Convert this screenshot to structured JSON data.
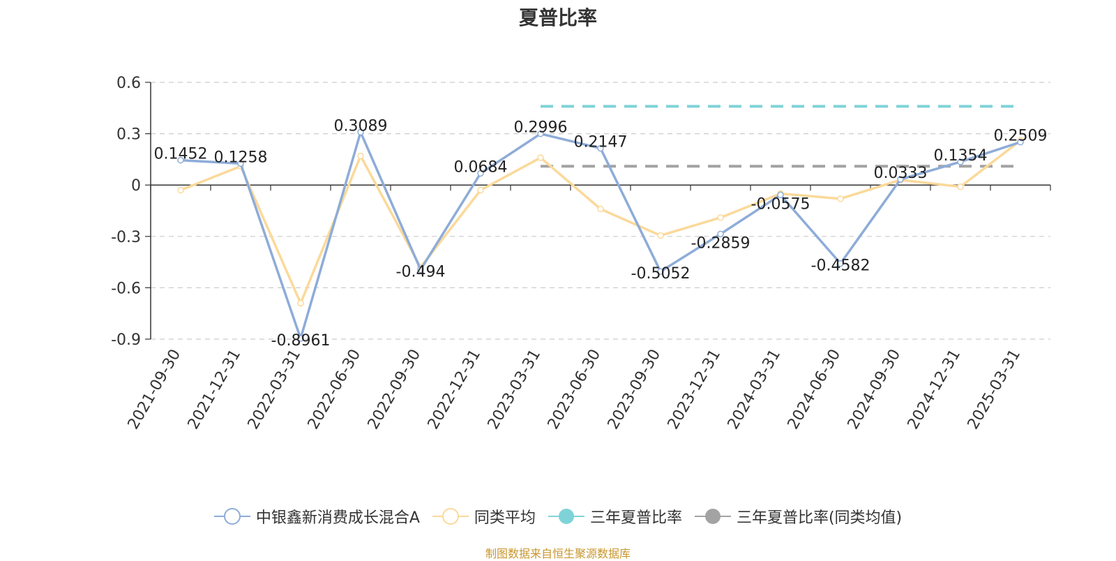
{
  "chart_data": {
    "type": "line",
    "title": "夏普比率",
    "categories": [
      "2021-09-30",
      "2021-12-31",
      "2022-03-31",
      "2022-06-30",
      "2022-09-30",
      "2022-12-31",
      "2023-03-31",
      "2023-06-30",
      "2023-09-30",
      "2023-12-31",
      "2024-03-31",
      "2024-06-30",
      "2024-09-30",
      "2024-12-31",
      "2025-03-31"
    ],
    "ylim": [
      -0.9,
      0.6
    ],
    "yticks": [
      0.6,
      0.3,
      0,
      -0.3,
      -0.6,
      -0.9
    ],
    "ytick_labels": [
      "0.6",
      "0.3",
      "0",
      "-0.3",
      "-0.6",
      "-0.9"
    ],
    "grid": true,
    "legend_position": "bottom",
    "series": [
      {
        "name": "中银鑫新消费成长混合A",
        "color": "#8eacd8",
        "values": [
          0.1452,
          0.1258,
          -0.8961,
          0.3089,
          -0.494,
          0.0684,
          0.2996,
          0.2147,
          -0.5052,
          -0.2859,
          -0.0575,
          -0.4582,
          0.0333,
          0.1354,
          0.2509
        ],
        "labels": [
          "0.1452",
          "0.1258",
          "-0.8961",
          "0.3089",
          "-0.494",
          "0.0684",
          "0.2996",
          "0.2147",
          "-0.5052",
          "-0.2859",
          "-0.0575",
          "-0.4582",
          "0.0333",
          "0.1354",
          "0.2509"
        ]
      },
      {
        "name": "同类平均",
        "color": "#fbd99a",
        "values": [
          -0.03,
          0.11,
          -0.69,
          0.17,
          -0.48,
          -0.03,
          0.16,
          -0.14,
          -0.295,
          -0.19,
          -0.05,
          -0.08,
          0.03,
          -0.01,
          0.26
        ]
      },
      {
        "name": "三年夏普比率",
        "color": "#7fd3d8",
        "style": "dashed",
        "value": 0.46,
        "x_range": [
          "2023-03-31",
          "2025-03-31"
        ]
      },
      {
        "name": "三年夏普比率(同类均值)",
        "color": "#a3a3a3",
        "style": "dashed",
        "value": 0.11,
        "x_range": [
          "2023-03-31",
          "2025-03-31"
        ]
      }
    ]
  },
  "legend": {
    "items": [
      "中银鑫新消费成长混合A",
      "同类平均",
      "三年夏普比率",
      "三年夏普比率(同类均值)"
    ]
  },
  "source_text": "制图数据来自恒生聚源数据库"
}
